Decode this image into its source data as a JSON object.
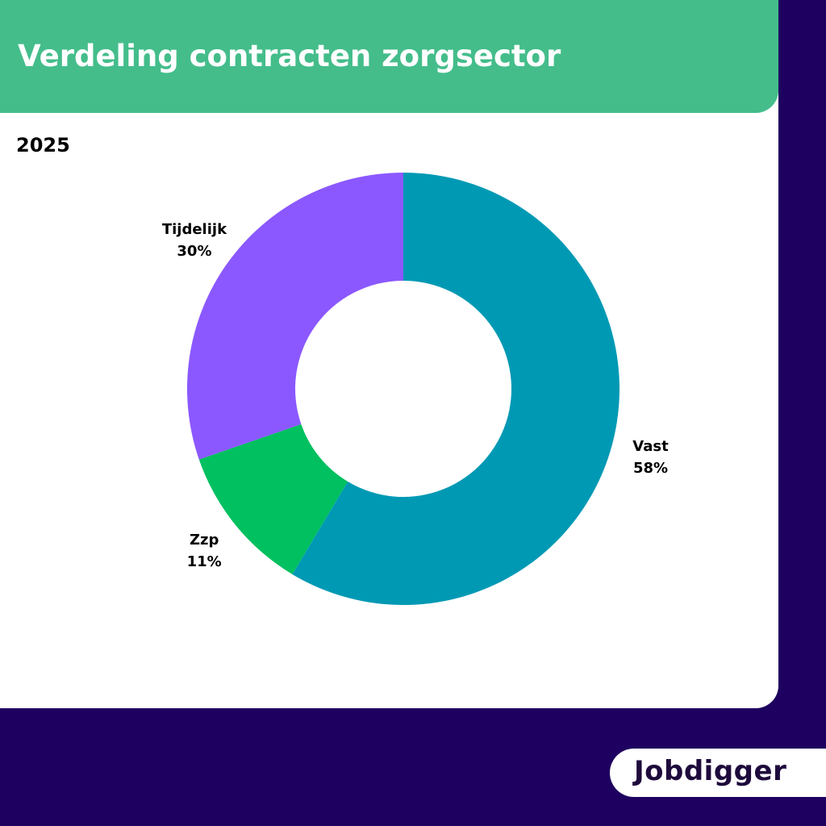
{
  "header": {
    "title": "Verdeling contracten zorgsector"
  },
  "year": "2025",
  "brand": {
    "logo_text": "Jobdigger"
  },
  "colors": {
    "background": "#1e0060",
    "header": "#44bd8b",
    "card": "#ffffff",
    "vast": "#0099b4",
    "zzp": "#00c060",
    "tijdelijk": "#8b58ff"
  },
  "chart_data": {
    "type": "pie",
    "donut": true,
    "title": "Verdeling contracten zorgsector",
    "subtitle": "2025",
    "start_angle_deg": 0,
    "direction": "clockwise",
    "slices": [
      {
        "label": "Vast",
        "value": 58,
        "value_label": "58%",
        "color": "#0099b4"
      },
      {
        "label": "Zzp",
        "value": 11,
        "value_label": "11%",
        "color": "#00c060"
      },
      {
        "label": "Tijdelijk",
        "value": 30,
        "value_label": "30%",
        "color": "#8b58ff"
      }
    ]
  }
}
